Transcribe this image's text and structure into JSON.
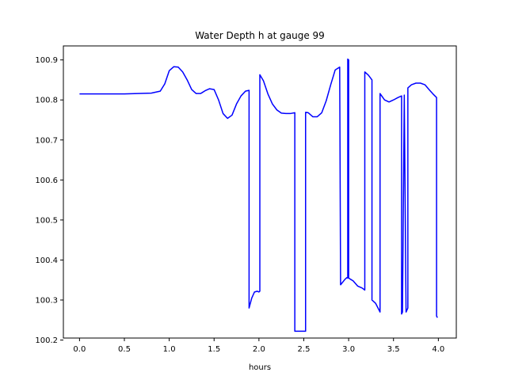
{
  "chart_data": {
    "type": "line",
    "title": "Water Depth h at gauge 99",
    "xlabel": "hours",
    "ylabel": "",
    "xlim": [
      -0.18,
      4.2
    ],
    "ylim": [
      100.205,
      100.935
    ],
    "xticks": [
      0.0,
      0.5,
      1.0,
      1.5,
      2.0,
      2.5,
      3.0,
      3.5,
      4.0
    ],
    "xtick_labels": [
      "0.0",
      "0.5",
      "1.0",
      "1.5",
      "2.0",
      "2.5",
      "3.0",
      "3.5",
      "4.0"
    ],
    "yticks": [
      100.2,
      100.3,
      100.4,
      100.5,
      100.6,
      100.7,
      100.8,
      100.9
    ],
    "ytick_labels": [
      "100.2",
      "100.3",
      "100.4",
      "100.5",
      "100.6",
      "100.7",
      "100.8",
      "100.9"
    ],
    "grid": false,
    "colors": {
      "line": "#0000ff"
    },
    "series": [
      {
        "x": [
          0.0,
          0.5,
          0.8,
          0.9,
          0.95,
          1.0,
          1.05,
          1.1,
          1.15,
          1.2,
          1.25,
          1.3,
          1.35,
          1.4,
          1.45,
          1.5,
          1.55,
          1.6,
          1.65,
          1.7,
          1.75,
          1.8,
          1.85,
          1.89,
          1.89,
          1.92,
          1.95,
          1.98,
          2.0,
          2.01,
          2.01,
          2.05,
          2.1,
          2.15,
          2.2,
          2.25,
          2.3,
          2.35,
          2.4,
          2.4,
          2.52,
          2.52,
          2.55,
          2.6,
          2.65,
          2.7,
          2.75,
          2.8,
          2.85,
          2.9,
          2.91,
          2.91,
          2.96,
          2.98,
          2.99,
          2.99,
          3.0,
          3.0,
          3.02,
          3.05,
          3.1,
          3.15,
          3.18,
          3.18,
          3.22,
          3.26,
          3.26,
          3.3,
          3.35,
          3.35,
          3.4,
          3.45,
          3.5,
          3.55,
          3.59,
          3.59,
          3.6,
          3.62,
          3.62,
          3.64,
          3.66,
          3.66,
          3.7,
          3.75,
          3.8,
          3.85,
          3.9,
          3.94,
          3.98,
          3.98,
          3.99
        ],
        "y": [
          100.815,
          100.815,
          100.817,
          100.822,
          100.84,
          100.873,
          100.883,
          100.882,
          100.87,
          100.85,
          100.826,
          100.816,
          100.816,
          100.823,
          100.828,
          100.826,
          100.8,
          100.766,
          100.754,
          100.762,
          100.79,
          100.81,
          100.822,
          100.824,
          100.28,
          100.305,
          100.32,
          100.322,
          100.32,
          100.322,
          100.863,
          100.848,
          100.815,
          100.79,
          100.775,
          100.767,
          100.766,
          100.766,
          100.768,
          100.222,
          100.222,
          100.769,
          100.768,
          100.758,
          100.758,
          100.768,
          100.798,
          100.838,
          100.875,
          100.882,
          100.338,
          100.338,
          100.352,
          100.356,
          100.355,
          100.902,
          100.9,
          100.355,
          100.352,
          100.348,
          100.335,
          100.33,
          100.325,
          100.87,
          100.862,
          100.85,
          100.3,
          100.292,
          100.27,
          100.816,
          100.8,
          100.795,
          100.8,
          100.806,
          100.81,
          100.265,
          100.27,
          100.805,
          100.812,
          100.27,
          100.28,
          100.83,
          100.838,
          100.842,
          100.842,
          100.838,
          100.825,
          100.815,
          100.806,
          100.26,
          100.256
        ]
      }
    ]
  }
}
